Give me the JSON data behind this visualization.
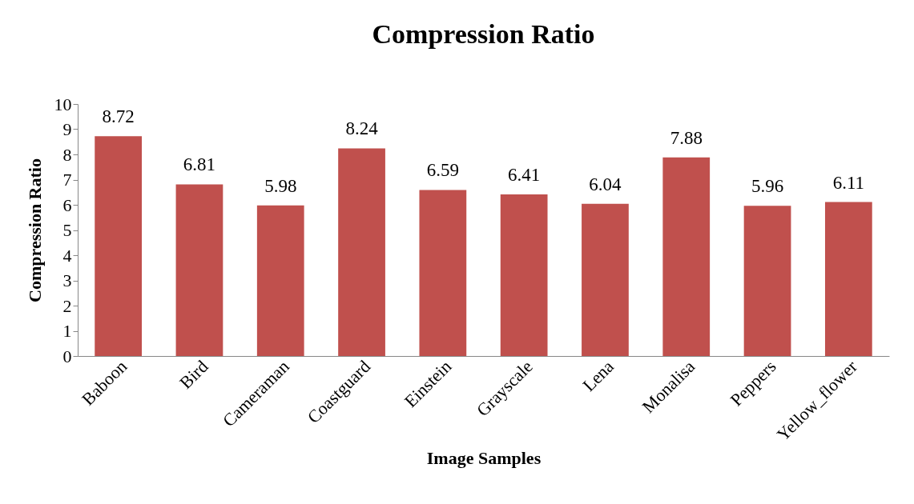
{
  "chart_data": {
    "type": "bar",
    "title": "Compression Ratio",
    "xlabel": "Image Samples",
    "ylabel": "Compression Ratio",
    "categories": [
      "Baboon",
      "Bird",
      "Cameraman",
      "Coastguard",
      "Einstein",
      "Grayscale",
      "Lena",
      "Monalisa",
      "Peppers",
      "Yellow_flower"
    ],
    "values": [
      8.72,
      6.81,
      5.98,
      8.24,
      6.59,
      6.41,
      6.04,
      7.88,
      5.96,
      6.11
    ],
    "color": "#c0504d",
    "ylim": [
      0,
      10
    ],
    "yticks": [
      0,
      1,
      2,
      3,
      4,
      5,
      6,
      7,
      8,
      9,
      10
    ],
    "grid": false,
    "data_labels": true
  }
}
